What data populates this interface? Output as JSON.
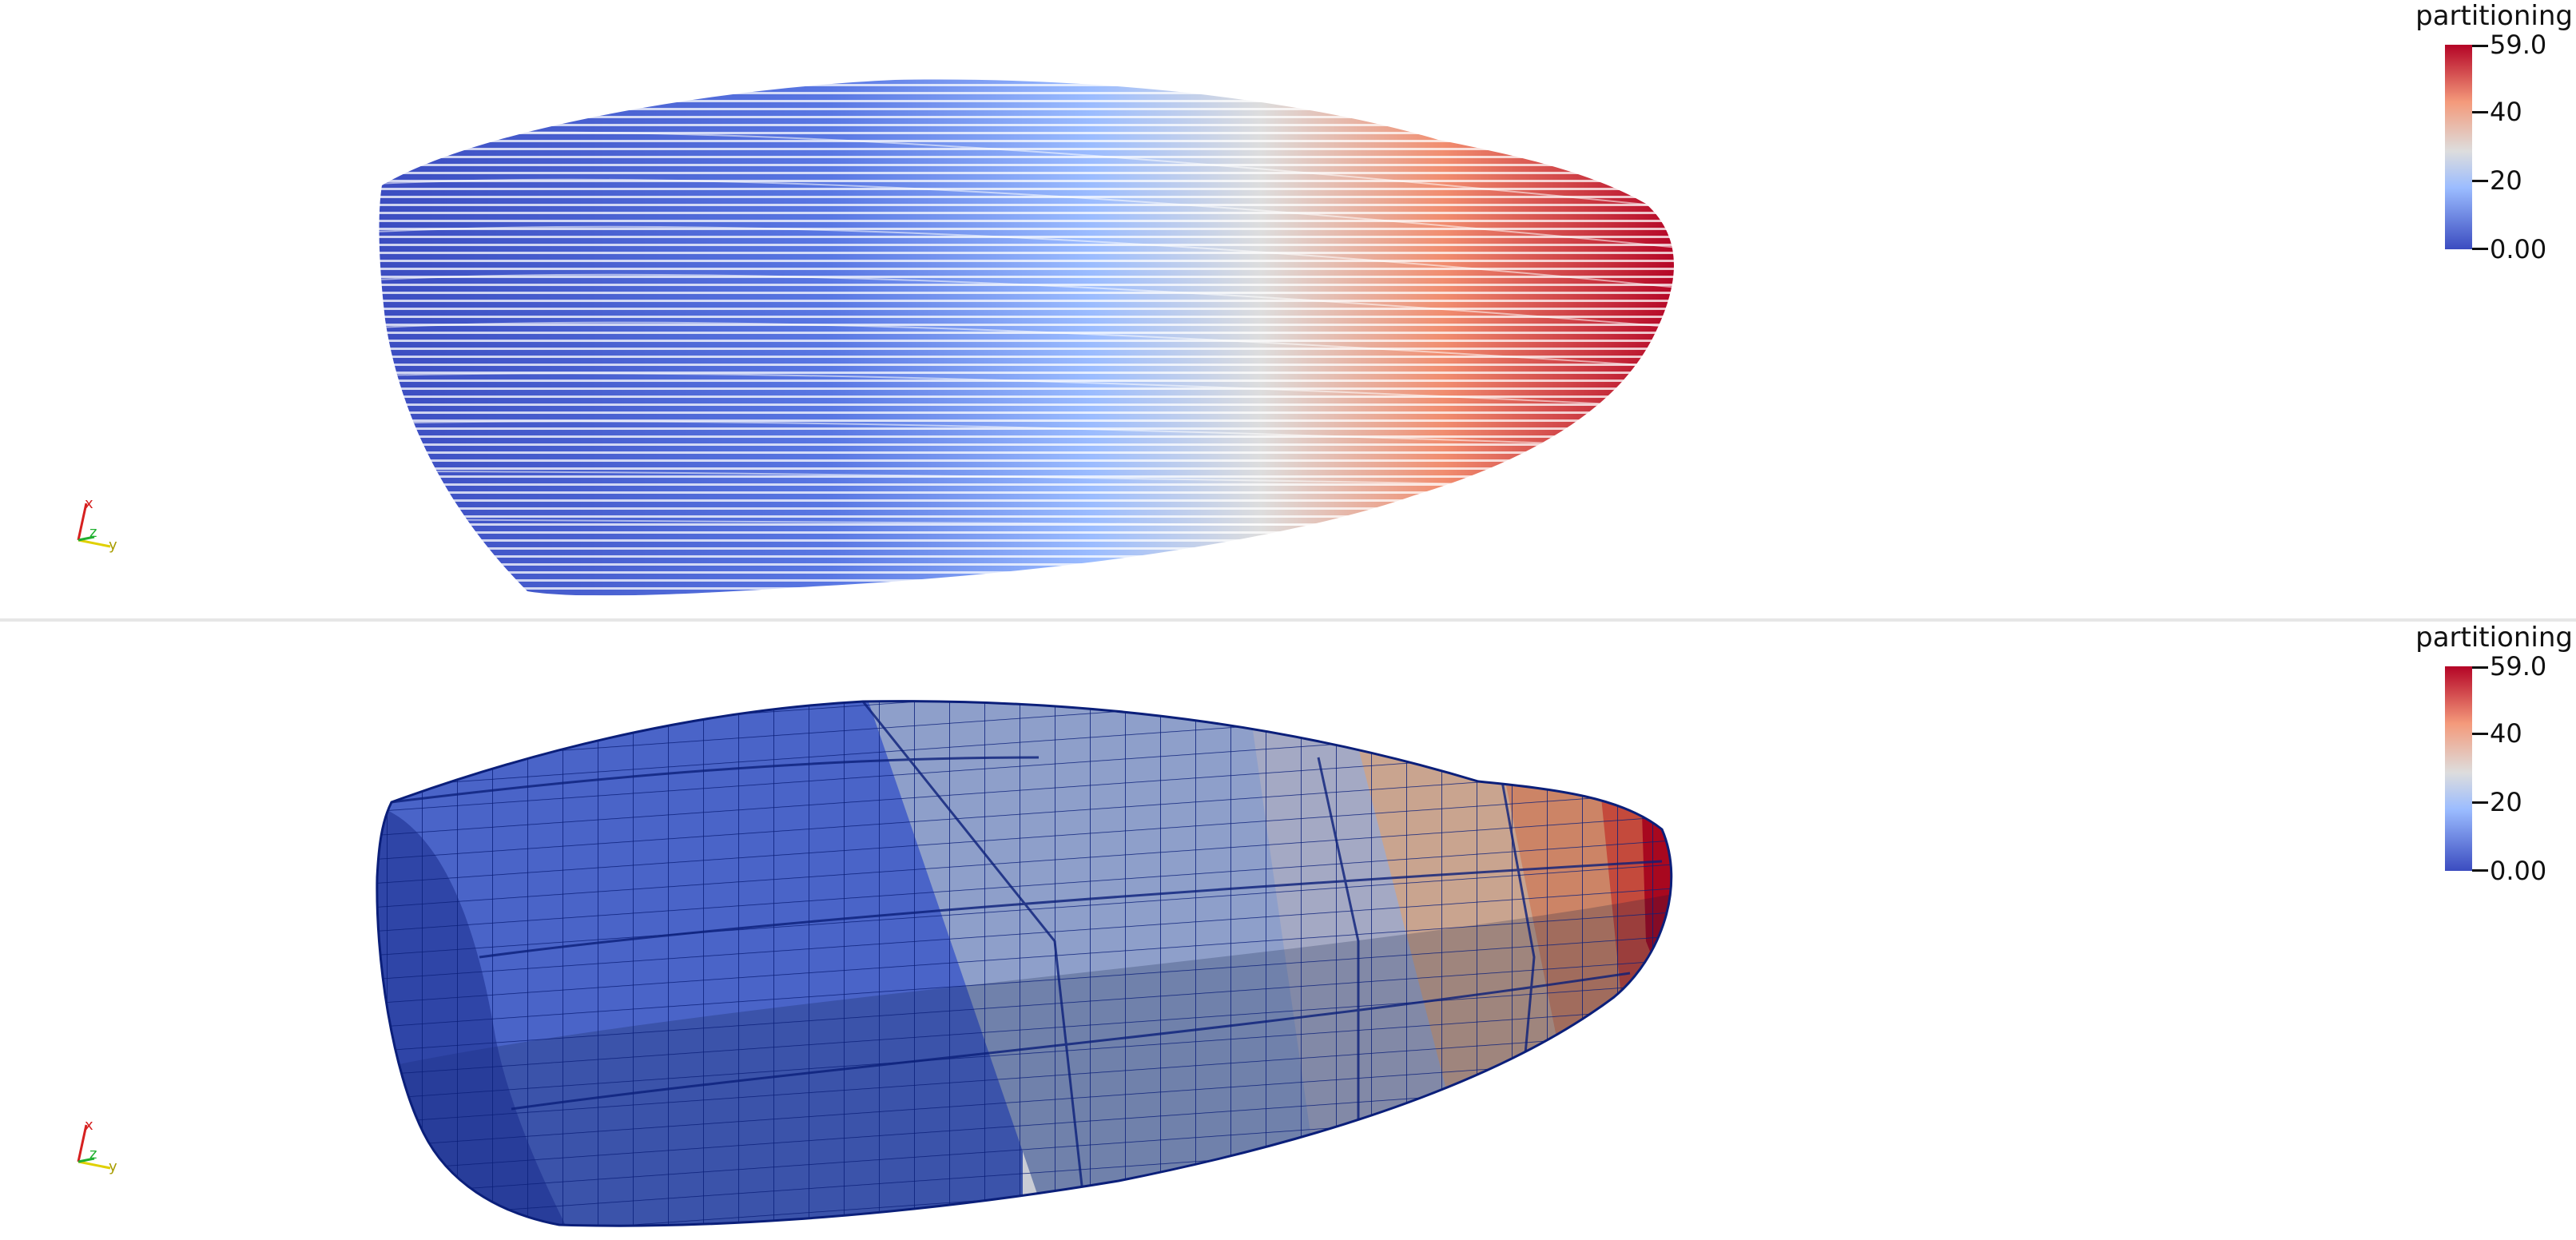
{
  "views": [
    {
      "representation": "streamlines",
      "scalar_bar": {
        "title": "partitioning",
        "labels": [
          "59.0",
          "40",
          "20",
          "0.00"
        ],
        "range": [
          0,
          59
        ],
        "colormap": [
          "#3b4cc0",
          "#7da0f9",
          "#dddddd",
          "#f49a7b",
          "#b40426"
        ]
      },
      "axes_labels": {
        "x": "x",
        "z": "z",
        "y": "y"
      }
    },
    {
      "representation": "surface-with-edges",
      "scalar_bar": {
        "title": "partitioning",
        "labels": [
          "59.0",
          "40",
          "20",
          "0.00"
        ],
        "range": [
          0,
          59
        ],
        "colormap": [
          "#3b4cc0",
          "#7da0f9",
          "#dddddd",
          "#f49a7b",
          "#b40426"
        ]
      },
      "axes_labels": {
        "x": "x",
        "z": "z",
        "y": "y"
      }
    }
  ],
  "colors": {
    "mesh_edge": "#0b1f7a",
    "axis_x": "#d62020",
    "axis_y": "#e0d000",
    "axis_z": "#20b030"
  }
}
